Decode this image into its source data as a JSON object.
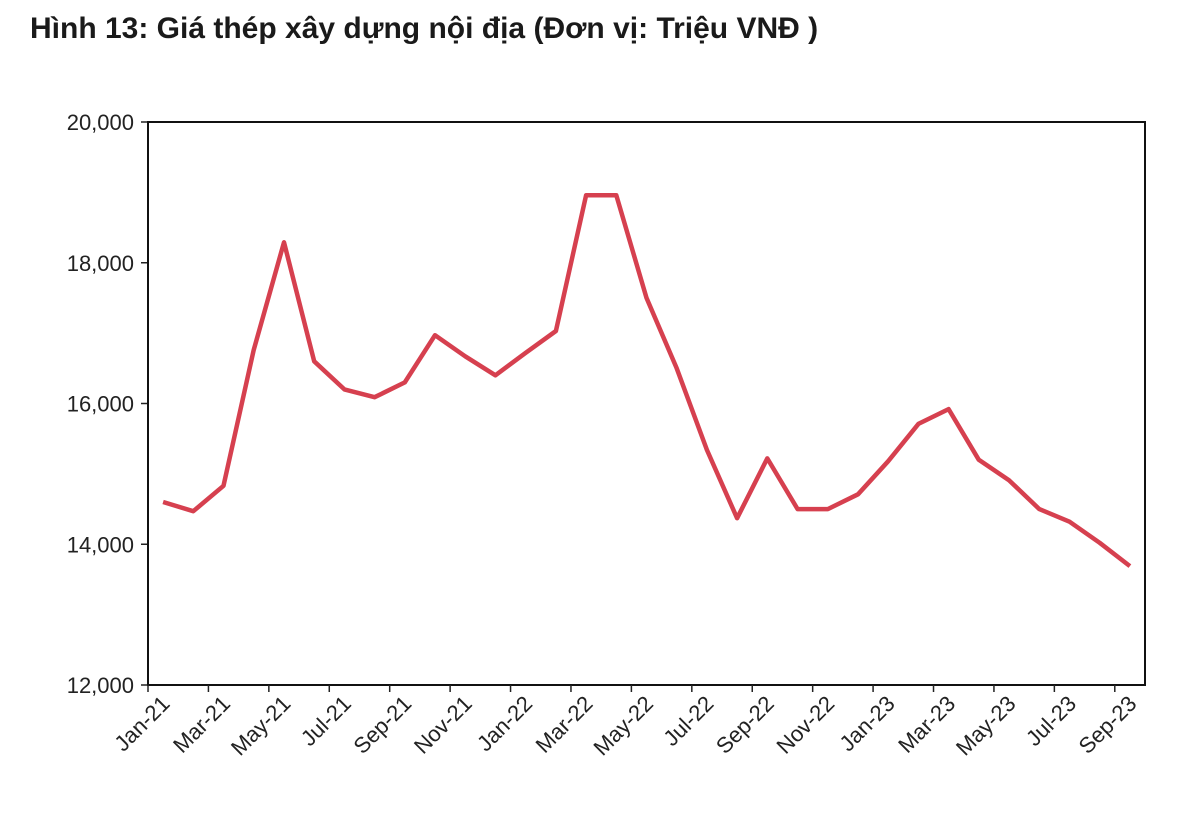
{
  "chart_data": {
    "type": "line",
    "title": "Hình 13: Giá thép xây dựng nội địa (Đơn vị: Triệu VNĐ )",
    "categories": [
      "Jan-21",
      null,
      "Mar-21",
      null,
      "May-21",
      null,
      "Jul-21",
      null,
      "Sep-21",
      null,
      "Nov-21",
      null,
      "Jan-22",
      null,
      "Mar-22",
      null,
      "May-22",
      null,
      "Jul-22",
      null,
      "Sep-22",
      null,
      "Nov-22",
      null,
      "Jan-23",
      null,
      "Mar-23",
      null,
      "May-23",
      null,
      "Jul-23",
      null,
      "Sep-23"
    ],
    "series": [
      {
        "color": "#d6404f",
        "values": [
          14600,
          14470,
          14830,
          16760,
          18290,
          16600,
          16200,
          16090,
          16300,
          16970,
          16670,
          16400,
          16720,
          17030,
          18960,
          18960,
          17500,
          16500,
          15340,
          14370,
          15220,
          14500,
          14500,
          14710,
          15180,
          15710,
          15920,
          15200,
          14910,
          14500,
          14320,
          14020,
          13690
        ]
      }
    ],
    "ylim": [
      12000,
      20000
    ],
    "yticks": [
      {
        "value": 12000,
        "label": "12,000"
      },
      {
        "value": 14000,
        "label": "14,000"
      },
      {
        "value": 16000,
        "label": "16,000"
      },
      {
        "value": 18000,
        "label": "18,000"
      },
      {
        "value": 20000,
        "label": "20,000"
      }
    ]
  }
}
